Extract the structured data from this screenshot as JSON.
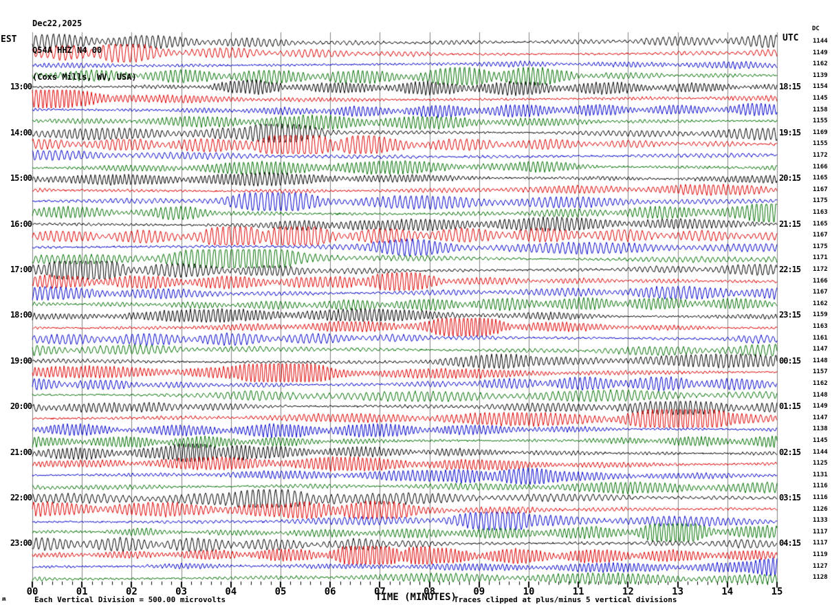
{
  "header": {
    "date_line": "Dec22,2025",
    "station_line": "Q54A HHZ N4 00",
    "location_line": "(Coxs Mills, WV, USA)"
  },
  "axis": {
    "left_tz": "EST",
    "right_tz": "UTC",
    "dc_header": "DC",
    "x_title": "TIME (MINUTES)",
    "x_tick_labels": [
      "00",
      "01",
      "02",
      "03",
      "04",
      "05",
      "06",
      "07",
      "08",
      "09",
      "10",
      "11",
      "12",
      "13",
      "14",
      "15"
    ]
  },
  "footer": {
    "scale_note": "Each Vertical Division =  500.00 microvolts",
    "clip_note": "Traces clipped at plus/minus 5 vertical divisions",
    "corner_glyph": "ʍ"
  },
  "chart_data": {
    "type": "line",
    "subtype": "helicorder-seismogram",
    "station": "Q54A HHZ N4 00",
    "location": "Coxs Mills, WV, USA",
    "date": "Dec22,2025",
    "minutes_per_line": 15,
    "x_range_minutes": [
      0,
      15
    ],
    "x_minor_ticks_per_minute": 5,
    "left_time_zone": "EST",
    "right_time_zone": "UTC",
    "grid": true,
    "grid_color": "#808080",
    "background": "#ffffff",
    "trace_color_cycle": [
      "#000000",
      "#dd0000",
      "#0000cc",
      "#007000"
    ],
    "amplitude_note": "Continuous microseism noise; traces clipped at plus/minus 5 vertical divisions, 500.00 microvolts per division",
    "traces": [
      {
        "row": 0,
        "color": "black",
        "dc": 1144,
        "est": "",
        "utc": ""
      },
      {
        "row": 1,
        "color": "red",
        "dc": 1149,
        "est": "",
        "utc": ""
      },
      {
        "row": 2,
        "color": "blue",
        "dc": 1162,
        "est": "",
        "utc": ""
      },
      {
        "row": 3,
        "color": "green",
        "dc": 1139,
        "est": "",
        "utc": ""
      },
      {
        "row": 4,
        "color": "black",
        "dc": 1154,
        "est": "13:00",
        "utc": "18:15"
      },
      {
        "row": 5,
        "color": "red",
        "dc": 1145,
        "est": "",
        "utc": ""
      },
      {
        "row": 6,
        "color": "blue",
        "dc": 1158,
        "est": "",
        "utc": ""
      },
      {
        "row": 7,
        "color": "green",
        "dc": 1155,
        "est": "",
        "utc": ""
      },
      {
        "row": 8,
        "color": "black",
        "dc": 1169,
        "est": "14:00",
        "utc": "19:15"
      },
      {
        "row": 9,
        "color": "red",
        "dc": 1155,
        "est": "",
        "utc": ""
      },
      {
        "row": 10,
        "color": "blue",
        "dc": 1172,
        "est": "",
        "utc": ""
      },
      {
        "row": 11,
        "color": "green",
        "dc": 1166,
        "est": "",
        "utc": ""
      },
      {
        "row": 12,
        "color": "black",
        "dc": 1165,
        "est": "15:00",
        "utc": "20:15"
      },
      {
        "row": 13,
        "color": "red",
        "dc": 1167,
        "est": "",
        "utc": ""
      },
      {
        "row": 14,
        "color": "blue",
        "dc": 1175,
        "est": "",
        "utc": ""
      },
      {
        "row": 15,
        "color": "green",
        "dc": 1163,
        "est": "",
        "utc": ""
      },
      {
        "row": 16,
        "color": "black",
        "dc": 1165,
        "est": "16:00",
        "utc": "21:15"
      },
      {
        "row": 17,
        "color": "red",
        "dc": 1167,
        "est": "",
        "utc": ""
      },
      {
        "row": 18,
        "color": "blue",
        "dc": 1175,
        "est": "",
        "utc": ""
      },
      {
        "row": 19,
        "color": "green",
        "dc": 1171,
        "est": "",
        "utc": ""
      },
      {
        "row": 20,
        "color": "black",
        "dc": 1172,
        "est": "17:00",
        "utc": "22:15"
      },
      {
        "row": 21,
        "color": "red",
        "dc": 1166,
        "est": "",
        "utc": ""
      },
      {
        "row": 22,
        "color": "blue",
        "dc": 1167,
        "est": "",
        "utc": ""
      },
      {
        "row": 23,
        "color": "green",
        "dc": 1162,
        "est": "",
        "utc": ""
      },
      {
        "row": 24,
        "color": "black",
        "dc": 1159,
        "est": "18:00",
        "utc": "23:15"
      },
      {
        "row": 25,
        "color": "red",
        "dc": 1163,
        "est": "",
        "utc": ""
      },
      {
        "row": 26,
        "color": "blue",
        "dc": 1161,
        "est": "",
        "utc": ""
      },
      {
        "row": 27,
        "color": "green",
        "dc": 1147,
        "est": "",
        "utc": ""
      },
      {
        "row": 28,
        "color": "black",
        "dc": 1148,
        "est": "19:00",
        "utc": "00:15"
      },
      {
        "row": 29,
        "color": "red",
        "dc": 1157,
        "est": "",
        "utc": ""
      },
      {
        "row": 30,
        "color": "blue",
        "dc": 1162,
        "est": "",
        "utc": ""
      },
      {
        "row": 31,
        "color": "green",
        "dc": 1148,
        "est": "",
        "utc": ""
      },
      {
        "row": 32,
        "color": "black",
        "dc": 1149,
        "est": "20:00",
        "utc": "01:15"
      },
      {
        "row": 33,
        "color": "red",
        "dc": 1147,
        "est": "",
        "utc": ""
      },
      {
        "row": 34,
        "color": "blue",
        "dc": 1138,
        "est": "",
        "utc": ""
      },
      {
        "row": 35,
        "color": "green",
        "dc": 1145,
        "est": "",
        "utc": ""
      },
      {
        "row": 36,
        "color": "black",
        "dc": 1144,
        "est": "21:00",
        "utc": "02:15"
      },
      {
        "row": 37,
        "color": "red",
        "dc": 1125,
        "est": "",
        "utc": ""
      },
      {
        "row": 38,
        "color": "blue",
        "dc": 1131,
        "est": "",
        "utc": ""
      },
      {
        "row": 39,
        "color": "green",
        "dc": 1116,
        "est": "",
        "utc": ""
      },
      {
        "row": 40,
        "color": "black",
        "dc": 1116,
        "est": "22:00",
        "utc": "03:15"
      },
      {
        "row": 41,
        "color": "red",
        "dc": 1126,
        "est": "",
        "utc": ""
      },
      {
        "row": 42,
        "color": "blue",
        "dc": 1133,
        "est": "",
        "utc": ""
      },
      {
        "row": 43,
        "color": "green",
        "dc": 1117,
        "est": "",
        "utc": ""
      },
      {
        "row": 44,
        "color": "black",
        "dc": 1117,
        "est": "23:00",
        "utc": "04:15"
      },
      {
        "row": 45,
        "color": "red",
        "dc": 1119,
        "est": "",
        "utc": ""
      },
      {
        "row": 46,
        "color": "blue",
        "dc": 1127,
        "est": "",
        "utc": ""
      },
      {
        "row": 47,
        "color": "green",
        "dc": 1128,
        "est": "",
        "utc": ""
      }
    ]
  }
}
